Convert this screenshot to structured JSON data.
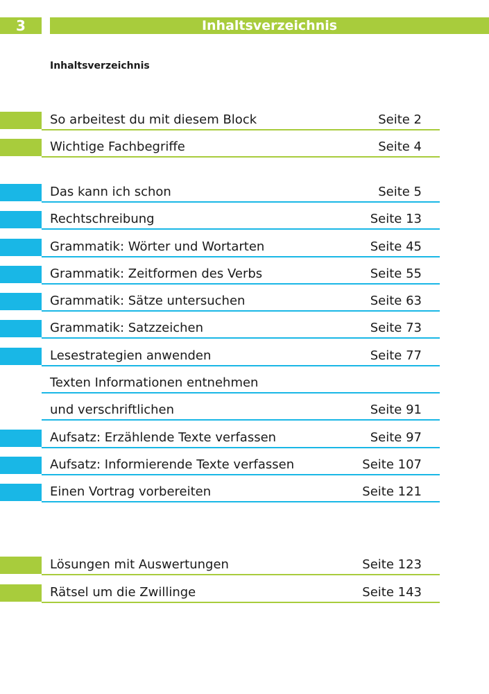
{
  "header": {
    "page_number": "3",
    "title": "Inhaltsverzeichnis"
  },
  "subtitle": "Inhaltsverzeichnis",
  "toc": [
    {
      "label": "So arbeitest du mit diesem Block",
      "page": "Seite 2",
      "color": "#a8cc3c"
    },
    {
      "label": "Wichtige Fachbegriffe",
      "page": "Seite 4",
      "color": "#a8cc3c"
    },
    {
      "label": "Das kann ich schon",
      "page": "Seite 5",
      "color": "#19b7e6"
    },
    {
      "label": "Rechtschreibung",
      "page": "Seite 13",
      "color": "#19b7e6"
    },
    {
      "label": "Grammatik: Wörter und Wortarten",
      "page": "Seite 45",
      "color": "#19b7e6"
    },
    {
      "label": "Grammatik: Zeitformen des Verbs",
      "page": "Seite 55",
      "color": "#19b7e6"
    },
    {
      "label": "Grammatik: Sätze untersuchen",
      "page": "Seite 63",
      "color": "#19b7e6"
    },
    {
      "label": "Grammatik: Satzzeichen",
      "page": "Seite 73",
      "color": "#19b7e6"
    },
    {
      "label": "Lesestrategien anwenden",
      "page": "Seite 77",
      "color": "#19b7e6"
    },
    {
      "label": "Texten Informationen entnehmen",
      "page": "",
      "color": "#19b7e6"
    },
    {
      "label": "und verschriftlichen",
      "page": "Seite 91",
      "color": "#19b7e6"
    },
    {
      "label": "Aufsatz: Erzählende Texte verfassen",
      "page": "Seite 97",
      "color": "#19b7e6"
    },
    {
      "label": "Aufsatz: Informierende Texte verfassen",
      "page": "Seite 107",
      "color": "#19b7e6"
    },
    {
      "label": "Einen Vortrag vorbereiten",
      "page": "Seite 121",
      "color": "#19b7e6"
    },
    {
      "label": "Lösungen mit Auswertungen",
      "page": "Seite 123",
      "color": "#a8cc3c"
    },
    {
      "label": "Rätsel um die Zwillinge",
      "page": "Seite 143",
      "color": "#a8cc3c"
    }
  ]
}
